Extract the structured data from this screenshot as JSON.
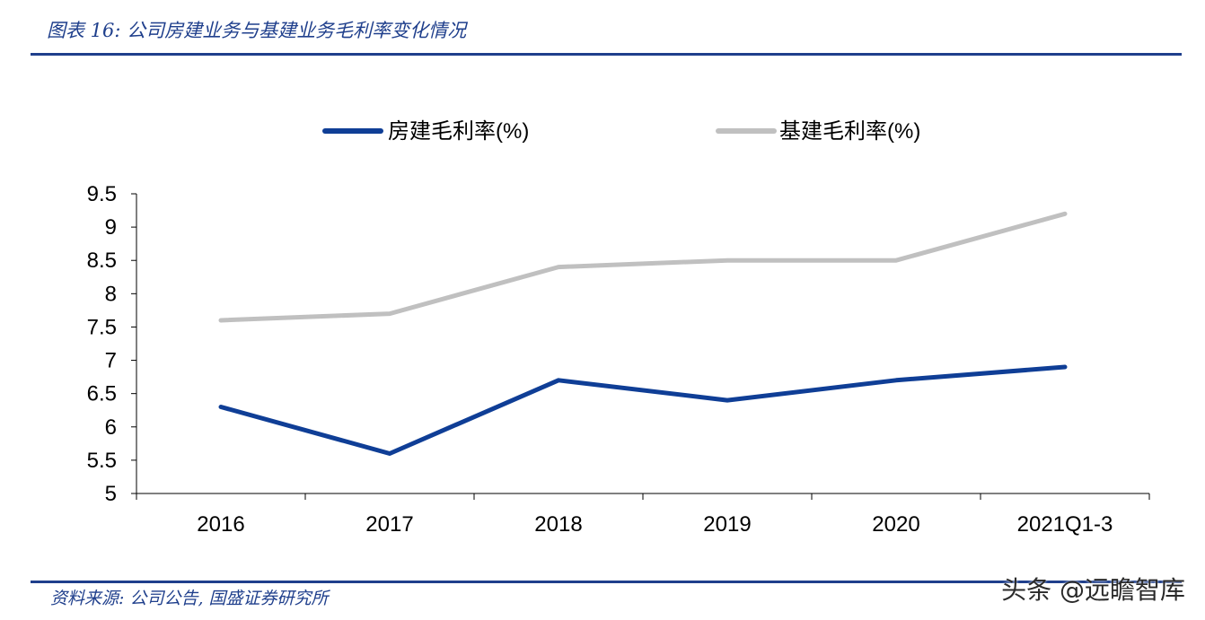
{
  "header": {
    "title": "图表 16:  公司房建业务与基建业务毛利率变化情况"
  },
  "footer": {
    "source": "资料来源: 公司公告, 国盛证券研究所",
    "watermark": "头条 @远瞻智库"
  },
  "colors": {
    "accent": "#1f3f8c",
    "series_blue": "#0f3e96",
    "series_grey": "#c0c0c0"
  },
  "chart_data": {
    "type": "line",
    "title": "",
    "xlabel": "",
    "ylabel": "",
    "categories": [
      "2016",
      "2017",
      "2018",
      "2019",
      "2020",
      "2021Q1-3"
    ],
    "series": [
      {
        "name": "房建毛利率(%)",
        "color": "#0f3e96",
        "values": [
          6.3,
          5.6,
          6.7,
          6.4,
          6.7,
          6.9
        ]
      },
      {
        "name": "基建毛利率(%)",
        "color": "#c0c0c0",
        "values": [
          7.6,
          7.7,
          8.4,
          8.5,
          8.5,
          9.2
        ]
      }
    ],
    "ylim": [
      5,
      9.5
    ],
    "yticks": [
      "5",
      "5.5",
      "6",
      "6.5",
      "7",
      "7.5",
      "8",
      "8.5",
      "9",
      "9.5"
    ],
    "grid": false,
    "legend": "top-center"
  }
}
